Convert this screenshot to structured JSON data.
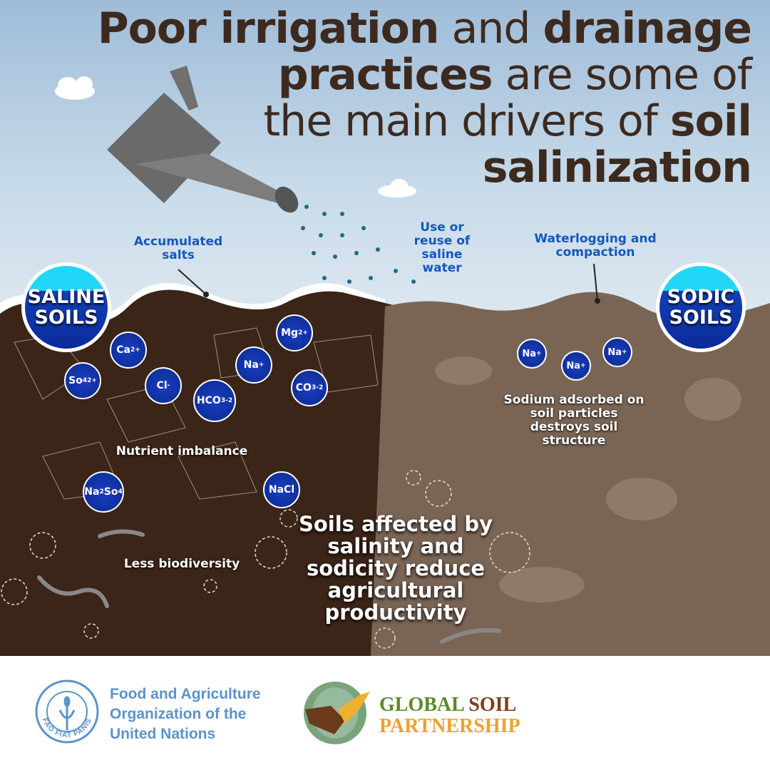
{
  "title": {
    "p1": "Poor irrigation",
    "p2": " and ",
    "p3": "drainage",
    "p4": "practices",
    "p5": " are some of",
    "p6": "the main drivers of ",
    "p7": "soil",
    "p8": "salinization"
  },
  "badges": {
    "saline": "SALINE SOILS",
    "sodic": "SODIC SOILS"
  },
  "labels": {
    "accumulated_salts": "Accumulated salts",
    "saline_water": "Use or reuse of saline water",
    "waterlogging": "Waterlogging and compaction",
    "sodium": "Sodium adsorbed on soil particles destroys soil structure",
    "nutrient": "Nutrient imbalance",
    "biodiversity": "Less biodiversity",
    "main_message": "Soils affected by salinity and sodicity reduce agricultural productivity"
  },
  "ions": {
    "ca": {
      "b": "Ca",
      "sup": "2+"
    },
    "so4": {
      "b": "So",
      "sub": "4",
      "sup": "2+"
    },
    "cl": {
      "b": "Cl",
      "sup": "-"
    },
    "hco3": {
      "b": "HCO",
      "sub": "3",
      "sup": "-2"
    },
    "na": {
      "b": "Na",
      "sup": "+"
    },
    "mg": {
      "b": "Mg",
      "sup": "2+"
    },
    "co3": {
      "b": "CO",
      "sub": "3",
      "sup": "-2"
    },
    "na2so4": {
      "b": "Na",
      "sub": "2",
      "b2": "So",
      "sub2": "4"
    },
    "nacl": {
      "b": "NaCl"
    },
    "sodic1": {
      "b": "Na",
      "sup": "+"
    },
    "sodic2": {
      "b": "Na",
      "sup": "+"
    },
    "sodic3": {
      "b": "Na",
      "sup": "+"
    }
  },
  "footer": {
    "fao_lines": [
      "Food and Agriculture",
      "Organization of the",
      "United Nations"
    ],
    "fao_logo_text": "FAO FIAT PANIS",
    "gsp_global": "GLOBAL ",
    "gsp_soil": "SOIL",
    "gsp_partnership": "PARTNERSHIP"
  },
  "colors": {
    "title": "#3d2a1f",
    "label_blue": "#1457c0",
    "ion_blue": "#0b2a8f",
    "fao_blue": "#5b93cc",
    "gsp_green": "#5a8a2a",
    "gsp_brown": "#7a3f1a",
    "gsp_orange": "#f0a030"
  }
}
